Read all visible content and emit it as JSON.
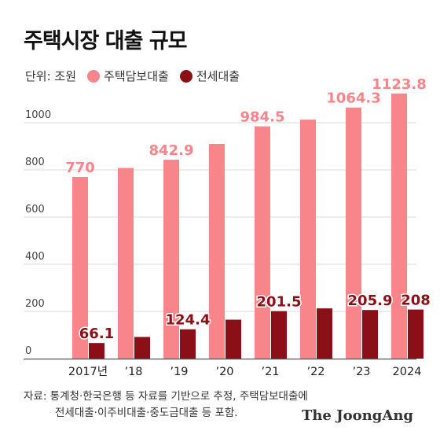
{
  "title": "주택시장 대출 규모",
  "unit_label": "단위: 조원",
  "colors": {
    "mortgage": "#f7858a",
    "jeonse": "#8b0f17",
    "grid": "#d9d9d9",
    "axis": "#555555"
  },
  "chart_data": {
    "type": "bar",
    "categories": [
      "2017년",
      "’18",
      "’19",
      "’20",
      "’21",
      "’22",
      "’23",
      "2024"
    ],
    "series": [
      {
        "name": "주택담보대출",
        "values": [
          770,
          808,
          842.9,
          910,
          984.5,
          1013,
          1064.3,
          1123.8
        ],
        "labels": [
          "770",
          "",
          "842.9",
          "",
          "984.5",
          "",
          "1064.3",
          "1123.8"
        ]
      },
      {
        "name": "전세대출",
        "values": [
          66.1,
          92,
          124.4,
          165,
          201.5,
          213,
          205.9,
          208
        ],
        "labels": [
          "66.1",
          "",
          "124.4",
          "",
          "201.5",
          "",
          "205.9",
          "208"
        ]
      }
    ],
    "yticks": [
      0,
      200,
      400,
      600,
      800,
      1000
    ],
    "ylim": [
      0,
      1200
    ],
    "grid": true,
    "legend": "top-left"
  },
  "footnote": {
    "line1": "자료: 통계청·한국은행 등 자료를 기반으로 추정, 주택담보대출에",
    "line2": "전세대출·이주비대출·중도금대출 등 포함."
  },
  "logo": "The JoongAng"
}
